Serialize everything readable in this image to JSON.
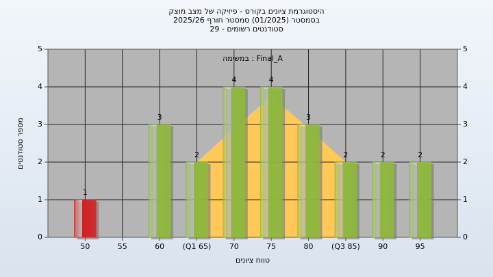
{
  "chart_data": {
    "type": "bar",
    "title": "היסטוגרמת ציונים בקורס - פיזיקה של מצב מוצק",
    "subtitle": "בסמסטר  (01/2025)  סמסטר חורף 2025/26",
    "subtitle2": "סטודנטים רשומים - 29",
    "annotation": "במשימה : Final_A",
    "x_label": "טווח ציונים",
    "y_label": "מספר סטודנטים",
    "categories": [
      "50",
      "55",
      "60",
      "(Q1 65)",
      "70",
      "75",
      "80",
      "(Q3 85)",
      "90",
      "95"
    ],
    "values": [
      1,
      0,
      3,
      2,
      4,
      4,
      3,
      2,
      2,
      2
    ],
    "colors": [
      "#d42020",
      "#8fba3c",
      "#8fba3c",
      "#8fba3c",
      "#8fba3c",
      "#8fba3c",
      "#8fba3c",
      "#8fba3c",
      "#8fba3c",
      "#8fba3c"
    ],
    "area": {
      "color": "#ffc857",
      "values": [
        null,
        null,
        null,
        2,
        2.9,
        3.75,
        2.9,
        2,
        null,
        null
      ]
    },
    "ylim": [
      0,
      5
    ],
    "yticks": [
      0,
      1,
      2,
      3,
      4,
      5
    ],
    "grid": true
  }
}
